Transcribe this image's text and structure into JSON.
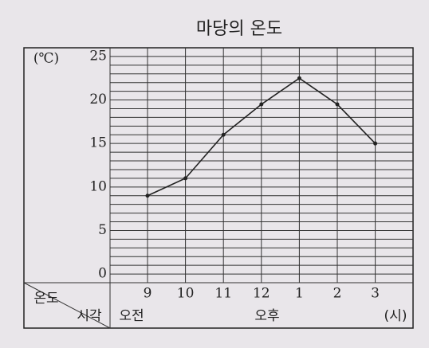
{
  "chart_data": {
    "type": "line",
    "title": "마당의 온도",
    "y_unit": "(℃)",
    "categories": [
      "9",
      "10",
      "11",
      "12",
      "1",
      "2",
      "3"
    ],
    "values": [
      9,
      11,
      16,
      19.5,
      22.5,
      19.5,
      15
    ],
    "color": "#222222",
    "ylim": [
      -1,
      26
    ],
    "yticks": [
      0,
      5,
      10,
      15,
      20,
      25
    ],
    "grid": true,
    "corner": {
      "top": "온도",
      "bottom": "시각"
    },
    "period": {
      "am": "오전",
      "pm": "오후"
    },
    "x_unit": "(시)"
  }
}
